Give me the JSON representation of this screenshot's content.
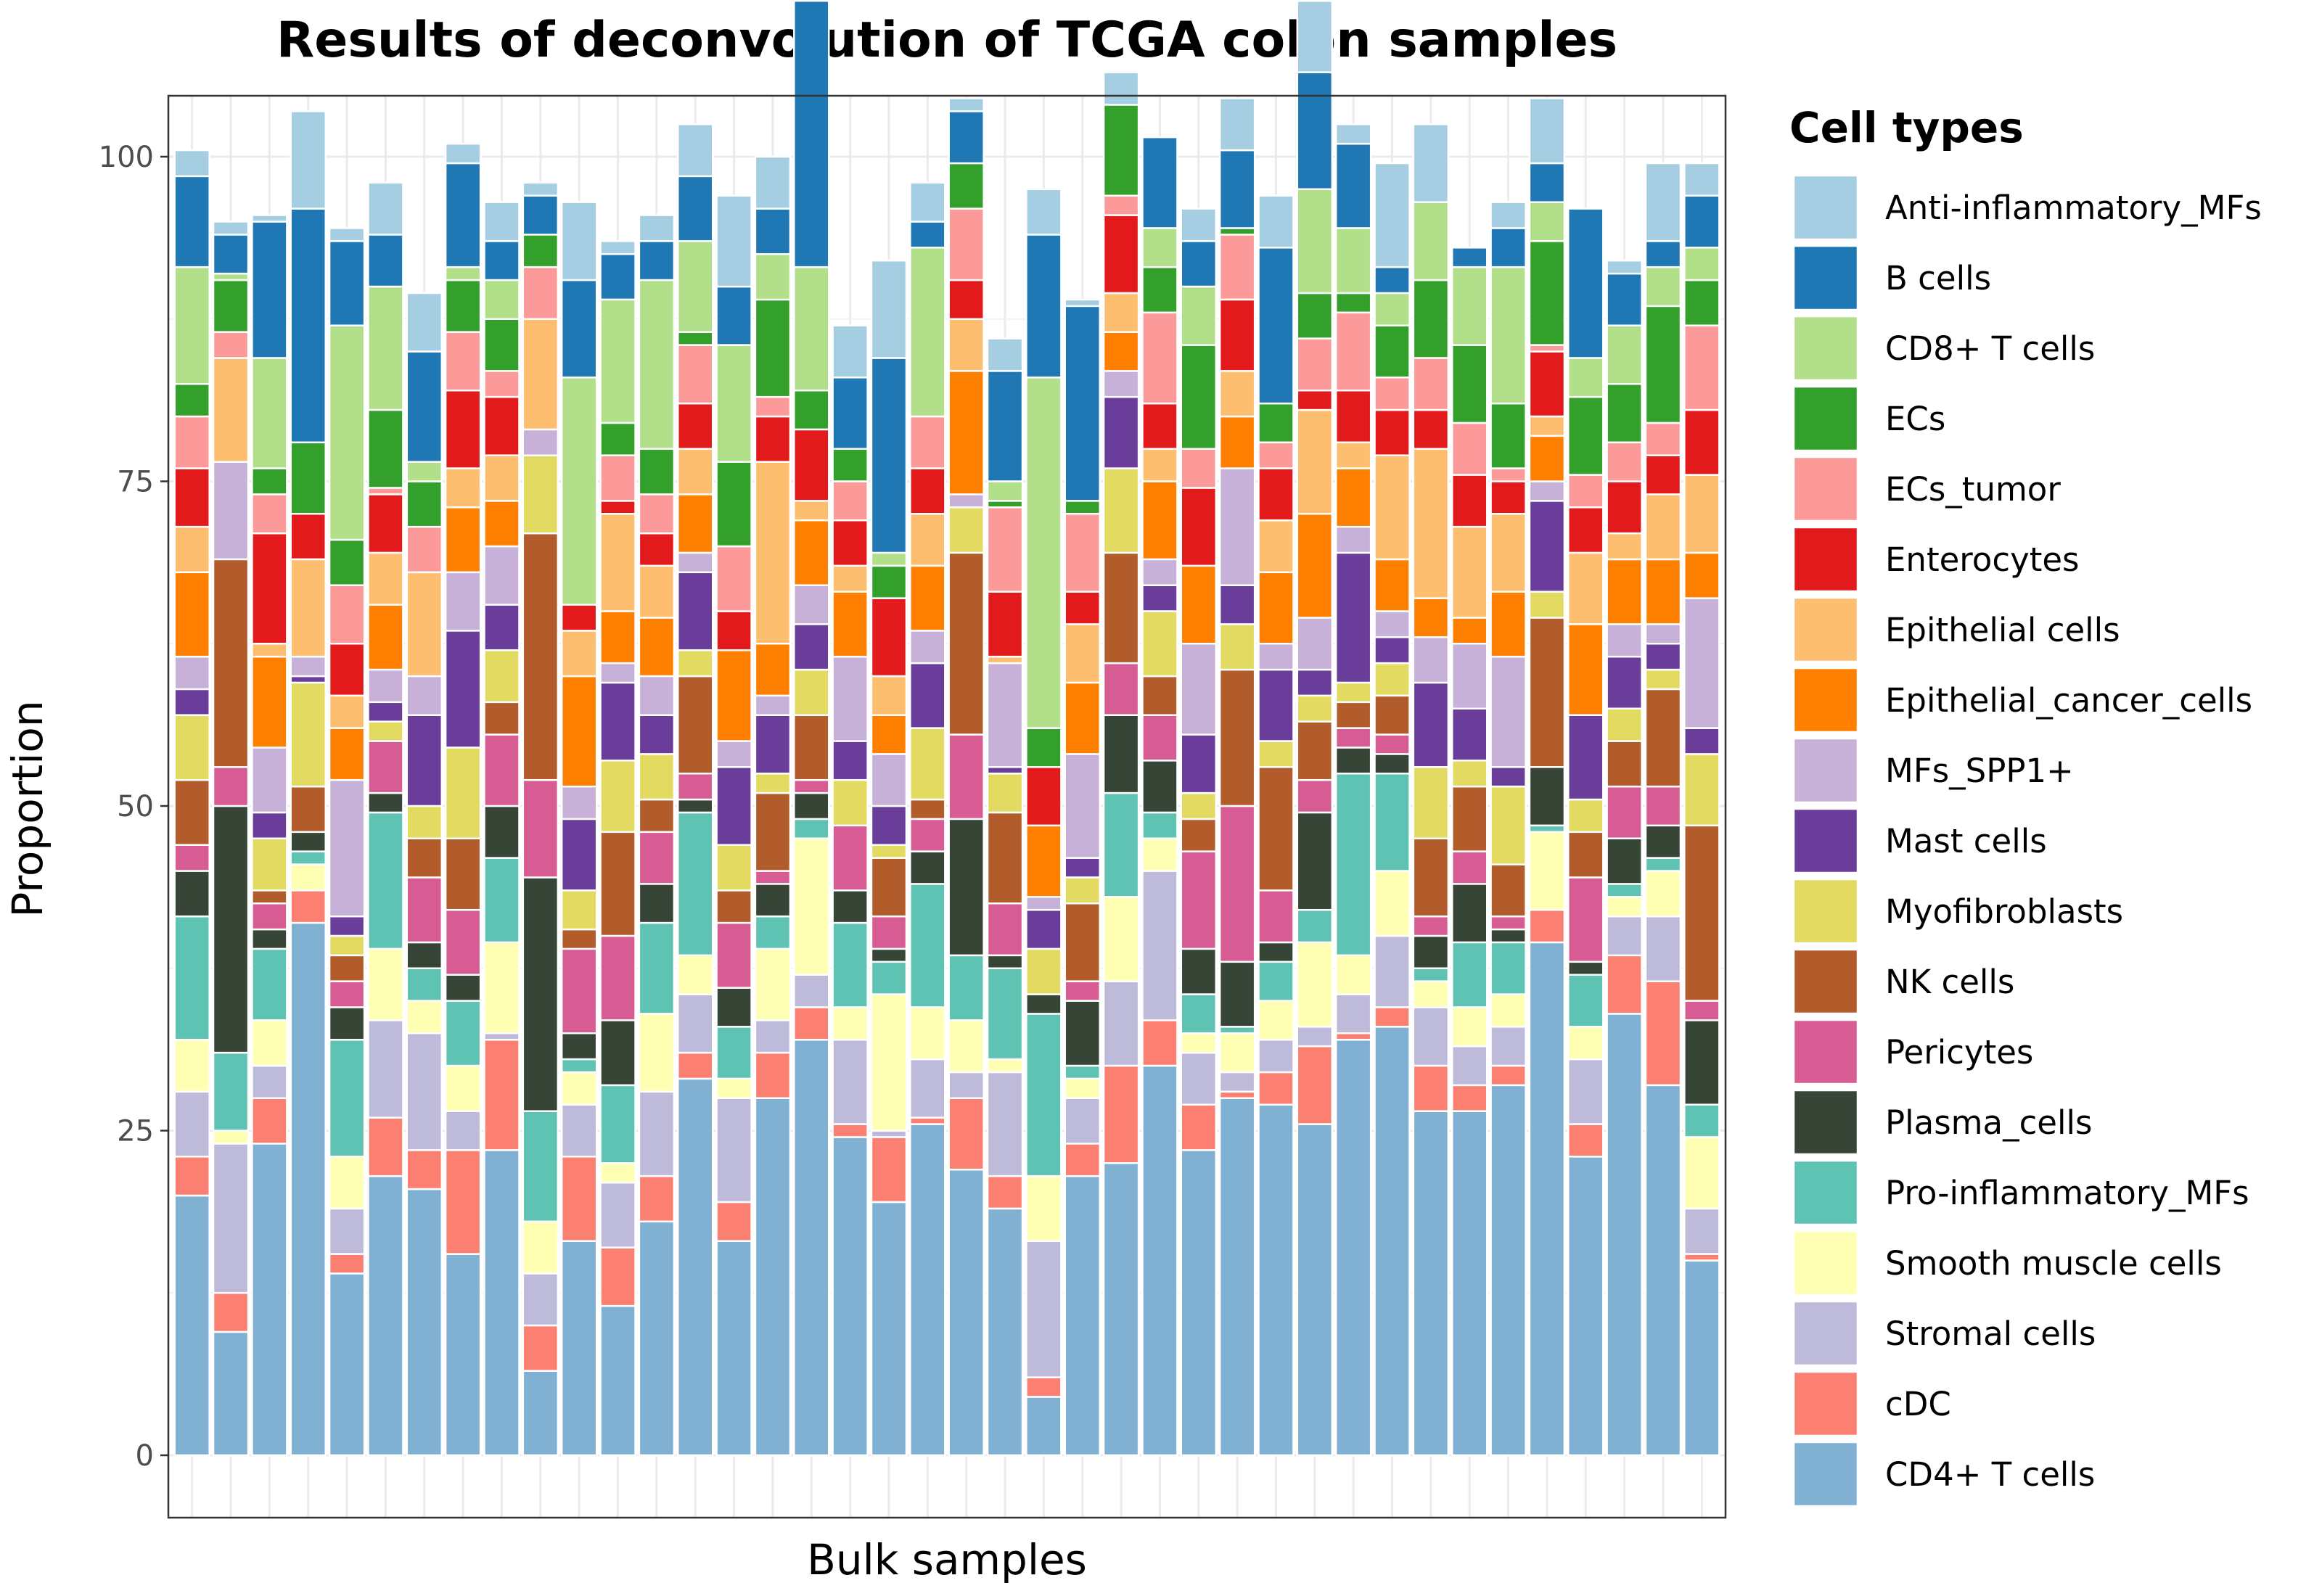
{
  "chart_data": {
    "type": "bar",
    "stacked": true,
    "title": "Results of deconvolution of TCGA colon samples",
    "xlabel": "Bulk samples",
    "ylabel": "Proportion",
    "ylim": [
      0,
      100
    ],
    "yticks": [
      0,
      25,
      50,
      75,
      100
    ],
    "grid": true,
    "legend": {
      "title": "Cell types",
      "placement": "right"
    },
    "series": [
      {
        "name": "CD4+ T cells",
        "color": "#80B1D3",
        "values": [
          20,
          9.5,
          24,
          41,
          14,
          21.5,
          20.5,
          15.5,
          23.5,
          6.5,
          16.5,
          11.5,
          18,
          29,
          16.5,
          27.5,
          32,
          24.5,
          19.5,
          25.5,
          22,
          19,
          4.5,
          21.5,
          22.5,
          30,
          23.5,
          27.5,
          27,
          25.5,
          32,
          33,
          26.5,
          26.5,
          28.5,
          39.5,
          23,
          34,
          28.5,
          15
        ]
      },
      {
        "name": "cDC",
        "color": "#FB8072",
        "values": [
          3,
          3,
          3.5,
          2.5,
          1.5,
          4.5,
          3,
          8,
          8.5,
          3.5,
          6.5,
          4.5,
          3.5,
          2,
          3,
          3.5,
          2.5,
          1,
          5,
          0.5,
          5.5,
          2.5,
          1.5,
          2.5,
          7.5,
          3.5,
          3.5,
          0.5,
          2.5,
          6,
          0.5,
          1.5,
          3.5,
          2,
          1.5,
          2.5,
          2.5,
          4.5,
          8,
          0.5
        ]
      },
      {
        "name": "Stromal cells",
        "color": "#BEBADA",
        "values": [
          5,
          11.5,
          2.5,
          0,
          3.5,
          7.5,
          9,
          3,
          0.5,
          4,
          4,
          5,
          6.5,
          4.5,
          8,
          2.5,
          2.5,
          6.5,
          0.5,
          4.5,
          2,
          8,
          10.5,
          3.5,
          6.5,
          11.5,
          4,
          1.5,
          2.5,
          1.5,
          3,
          5.5,
          4.5,
          3,
          3,
          0,
          5,
          3,
          5,
          3.5
        ]
      },
      {
        "name": "Smooth muscle cells",
        "color": "#FFFFB3",
        "values": [
          4,
          1,
          3.5,
          2,
          4,
          5.5,
          2.5,
          3.5,
          7,
          4,
          2.5,
          1.5,
          6,
          3,
          1.5,
          5.5,
          10.5,
          2.5,
          10.5,
          4,
          4,
          1,
          5,
          1.5,
          6.5,
          2.5,
          1.5,
          3,
          3,
          6.5,
          3,
          5,
          2,
          3,
          2.5,
          6,
          2.5,
          1.5,
          3.5,
          5.5
        ]
      },
      {
        "name": "Pro-inflammatory_MFs",
        "color": "#5FC3B3",
        "values": [
          9.5,
          6,
          5.5,
          1,
          9,
          10.5,
          2.5,
          5,
          6.5,
          8.5,
          1,
          6,
          7,
          11,
          4,
          2.5,
          1.5,
          6.5,
          2.5,
          9.5,
          5,
          7,
          12.5,
          1,
          8,
          2,
          3,
          0.5,
          3,
          2.5,
          14,
          7.5,
          1,
          5,
          4,
          0.5,
          4,
          1,
          1,
          2.5
        ]
      },
      {
        "name": "Plasma_cells",
        "color": "#364536",
        "values": [
          3.5,
          19,
          1.5,
          1.5,
          2.5,
          1.5,
          2,
          2,
          4,
          18,
          2,
          5,
          3,
          1,
          3,
          2.5,
          2,
          2.5,
          1,
          2.5,
          10.5,
          1,
          1.5,
          5,
          6,
          4,
          3.5,
          5,
          1.5,
          7.5,
          2,
          1.5,
          2.5,
          4.5,
          1,
          4.5,
          1,
          3.5,
          2.5,
          6.5
        ]
      },
      {
        "name": "Pericytes",
        "color": "#D65C93",
        "values": [
          2,
          3,
          2,
          0,
          2,
          4,
          5,
          5,
          5.5,
          7.5,
          6.5,
          6.5,
          4,
          2,
          5,
          1,
          1,
          5,
          2.5,
          2.5,
          6.5,
          4,
          0,
          1.5,
          4,
          3.5,
          7.5,
          12,
          4,
          2.5,
          1.5,
          1.5,
          1.5,
          2.5,
          1,
          0,
          6.5,
          4,
          3,
          1.5
        ]
      },
      {
        "name": "NK cells",
        "color": "#B25B2B",
        "values": [
          5,
          16,
          1,
          3.5,
          2,
          0,
          3,
          5.5,
          2.5,
          19,
          1.5,
          8,
          2.5,
          7.5,
          2.5,
          6,
          5,
          0,
          4.5,
          1.5,
          14,
          7,
          0,
          6,
          8.5,
          3,
          2.5,
          10.5,
          9.5,
          4.5,
          2,
          3,
          6,
          5,
          4,
          11.5,
          3.5,
          3.5,
          7.5,
          13.5
        ]
      },
      {
        "name": "Myofibroblasts",
        "color": "#E3DA62",
        "values": [
          5,
          0,
          4,
          8,
          1.5,
          1.5,
          2.5,
          7,
          4,
          6,
          3,
          5.5,
          3.5,
          2,
          3.5,
          1.5,
          3.5,
          3.5,
          1,
          5.5,
          3.5,
          3,
          3.5,
          2,
          6.5,
          5,
          2,
          3.5,
          2,
          2,
          1.5,
          2.5,
          5.5,
          2,
          6,
          2,
          2.5,
          2.5,
          1.5,
          5.5
        ]
      },
      {
        "name": "Mast cells",
        "color": "#6A3D9A",
        "values": [
          2,
          0,
          2,
          0.5,
          1.5,
          1.5,
          7,
          9,
          3.5,
          0,
          5.5,
          6,
          3,
          6,
          6,
          4.5,
          3.5,
          3,
          3,
          5,
          0,
          0.5,
          3,
          1.5,
          5.5,
          2,
          4.5,
          3,
          5.5,
          2,
          10,
          2,
          6.5,
          4,
          1.5,
          7,
          6.5,
          4,
          2,
          2
        ]
      },
      {
        "name": "MFs_SPP1+",
        "color": "#C7B1D8",
        "values": [
          2.5,
          7.5,
          5,
          1.5,
          10.5,
          2.5,
          3,
          4.5,
          4.5,
          2,
          2.5,
          1.5,
          3,
          1.5,
          2,
          1.5,
          3,
          6.5,
          4,
          2.5,
          1,
          8,
          1,
          8,
          2,
          2,
          7,
          9,
          2,
          4,
          2,
          2,
          3.5,
          5,
          8.5,
          1.5,
          0,
          2.5,
          1.5,
          10
        ]
      },
      {
        "name": "Epithelial_cancer_cells",
        "color": "#FF7F00",
        "values": [
          6.5,
          0,
          7,
          0,
          4,
          5,
          0,
          5,
          3.5,
          0,
          8.5,
          4,
          4.5,
          4.5,
          7,
          4,
          5,
          5,
          3,
          5,
          9.5,
          0,
          5.5,
          5.5,
          3,
          6,
          6,
          4,
          5.5,
          8,
          4.5,
          4,
          3,
          2,
          5,
          3.5,
          7,
          5,
          5,
          3.5
        ]
      },
      {
        "name": "Epithelial cells",
        "color": "#FDBF6F",
        "values": [
          3.5,
          8,
          1,
          7.5,
          2.5,
          4,
          8,
          3,
          3.5,
          8.5,
          3.5,
          7.5,
          4,
          3.5,
          0,
          14,
          1.5,
          2,
          3,
          4,
          4,
          0.5,
          0,
          4.5,
          3,
          2.5,
          0,
          3.5,
          4,
          8,
          2,
          8,
          11.5,
          7,
          6,
          1.5,
          5.5,
          2,
          5,
          6
        ]
      },
      {
        "name": "Enterocytes",
        "color": "#E31A1C",
        "values": [
          4.5,
          0,
          8.5,
          3.5,
          4,
          4.5,
          0,
          6,
          4.5,
          0,
          2,
          1,
          2.5,
          3.5,
          3,
          3.5,
          5.5,
          3.5,
          6,
          3.5,
          3,
          5,
          4.5,
          2.5,
          6,
          3.5,
          6,
          5.5,
          4,
          1.5,
          4,
          3.5,
          3,
          4,
          2.5,
          5,
          3.5,
          4,
          3,
          5
        ]
      },
      {
        "name": "ECs_tumor",
        "color": "#FB9A99",
        "values": [
          4,
          2,
          3,
          0,
          4.5,
          0.5,
          3.5,
          4.5,
          2,
          4,
          0,
          3.5,
          3,
          4.5,
          5,
          1.5,
          0,
          3,
          0,
          4,
          5.5,
          6.5,
          0,
          6,
          1.5,
          7,
          3,
          5,
          2,
          4,
          6,
          2.5,
          4,
          4,
          1,
          0.5,
          2.5,
          3,
          2.5,
          6.5
        ]
      },
      {
        "name": "ECs",
        "color": "#33A02C",
        "values": [
          2.5,
          4,
          2,
          5.5,
          3.5,
          6,
          3.5,
          4,
          4,
          2.5,
          0,
          2.5,
          3.5,
          1,
          6.5,
          7.5,
          3,
          2.5,
          2.5,
          0,
          3.5,
          0.5,
          3,
          1,
          7,
          3.5,
          8,
          0.5,
          3,
          3.5,
          1.5,
          4,
          6,
          6,
          5,
          8,
          6,
          4.5,
          9,
          3.5
        ]
      },
      {
        "name": "CD8+ T cells",
        "color": "#B2DF8A",
        "values": [
          9,
          0.5,
          8.5,
          0,
          16.5,
          9.5,
          1.5,
          1,
          3,
          0,
          17.5,
          9.5,
          13,
          7,
          9,
          3.5,
          9.5,
          0,
          1,
          13,
          0,
          1.5,
          27,
          0,
          0,
          3,
          4.5,
          0,
          0,
          8,
          5,
          2.5,
          6,
          6,
          10.5,
          3,
          3,
          4.5,
          3,
          2.5
        ]
      },
      {
        "name": "B cells",
        "color": "#1F78B4",
        "values": [
          7,
          3,
          10.5,
          18,
          6.5,
          4,
          8.5,
          8,
          3,
          3,
          7.5,
          3.5,
          3,
          5,
          4.5,
          3.5,
          20.5,
          5.5,
          15,
          2,
          4,
          8.5,
          11,
          15,
          0,
          7,
          3.5,
          6,
          12,
          9,
          6.5,
          2,
          0,
          1.5,
          3,
          3,
          11.5,
          4,
          2,
          4
        ]
      },
      {
        "name": "Anti-inflammatory_MFs",
        "color": "#A6CEE3",
        "values": [
          2,
          1,
          0.5,
          7.5,
          1,
          4,
          4.5,
          1.5,
          3,
          1,
          6,
          1,
          2,
          4,
          7,
          4,
          0,
          4,
          7.5,
          3,
          1,
          2.5,
          3.5,
          0.5,
          2.5,
          0,
          2.5,
          4,
          4,
          5.5,
          1.5,
          8,
          6,
          0,
          2,
          5,
          0,
          1,
          6,
          2.5
        ]
      }
    ],
    "legend_order": [
      "Anti-inflammatory_MFs",
      "B cells",
      "CD8+ T cells",
      "ECs",
      "ECs_tumor",
      "Enterocytes",
      "Epithelial cells",
      "Epithelial_cancer_cells",
      "MFs_SPP1+",
      "Mast cells",
      "Myofibroblasts",
      "NK cells",
      "Pericytes",
      "Plasma_cells",
      "Pro-inflammatory_MFs",
      "Smooth muscle cells",
      "Stromal cells",
      "cDC",
      "CD4+ T cells"
    ]
  }
}
